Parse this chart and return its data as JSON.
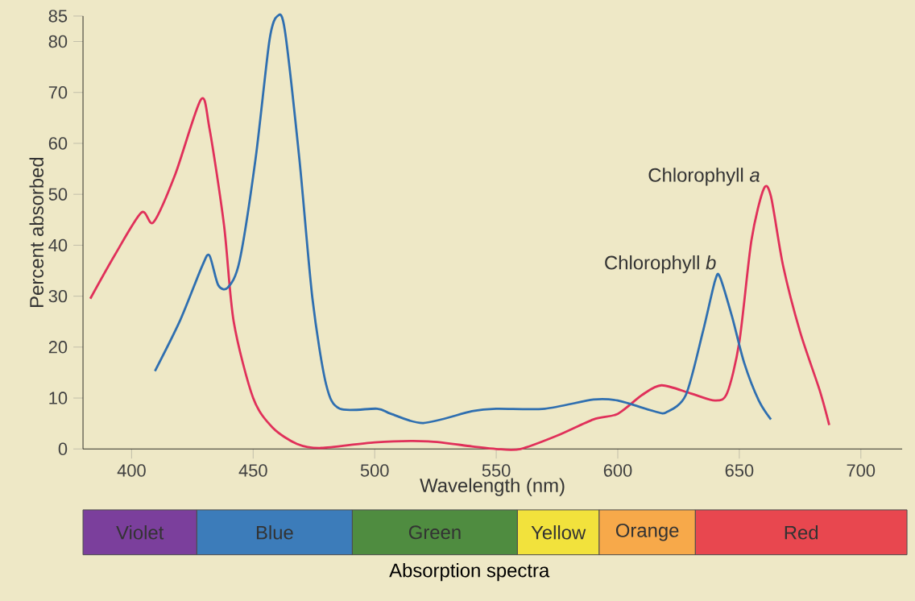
{
  "chart_data": {
    "type": "line",
    "xlabel": "Wavelength (nm)",
    "ylabel": "Percent absorbed",
    "xlim": [
      380,
      717
    ],
    "xticks": [
      400,
      450,
      500,
      550,
      600,
      650,
      700
    ],
    "ylim": [
      0,
      85
    ],
    "yticks": [
      0,
      10,
      20,
      30,
      40,
      50,
      60,
      70,
      80,
      85
    ],
    "grid": false,
    "marker": "none",
    "line_style": "solid",
    "series": [
      {
        "name": "Chlorophyll *a*",
        "color": "#e0305a",
        "x": [
          383,
          393,
          404,
          409,
          418,
          428.5,
          432,
          438,
          442,
          450,
          458,
          468,
          478,
          500,
          522,
          540,
          550,
          560,
          575,
          590,
          600,
          610,
          618,
          630,
          640,
          645,
          650,
          655,
          660,
          663,
          668,
          675,
          683,
          687
        ],
        "values": [
          29.5,
          38,
          46.4,
          44.5,
          54,
          68.6,
          63,
          44,
          25,
          10,
          4.2,
          1,
          0.2,
          1.3,
          1.5,
          0.5,
          0,
          0,
          2.6,
          5.8,
          6.9,
          10.6,
          12.5,
          10.9,
          9.5,
          11,
          21,
          41,
          51,
          49.6,
          36,
          23,
          11.6,
          4.7
        ]
      },
      {
        "name": "Chlorophyll *b*",
        "color": "#2f6fb0",
        "x": [
          409.6,
          420,
          429,
          432,
          435.6,
          439.6,
          444.4,
          451,
          456.7,
          460,
          463,
          469,
          474.4,
          480,
          485.6,
          501,
          506.7,
          520,
          540,
          550,
          570,
          590,
          600,
          615,
          620,
          628,
          635,
          640,
          642,
          647,
          652,
          658,
          663
        ],
        "values": [
          15.3,
          25.3,
          35.9,
          38,
          32.2,
          31.7,
          36.9,
          57,
          80.2,
          85,
          82.3,
          57,
          29.5,
          12.7,
          7.9,
          7.9,
          6.9,
          5.1,
          7.4,
          7.9,
          7.9,
          9.7,
          9.5,
          7.4,
          7.2,
          10.6,
          23,
          33,
          33.8,
          26,
          16.9,
          9.5,
          5.8
        ]
      }
    ],
    "annotations": [
      "Violet",
      "Blue",
      "Green",
      "Yellow",
      "Orange",
      "Red",
      "Absorption spectra"
    ]
  }
}
